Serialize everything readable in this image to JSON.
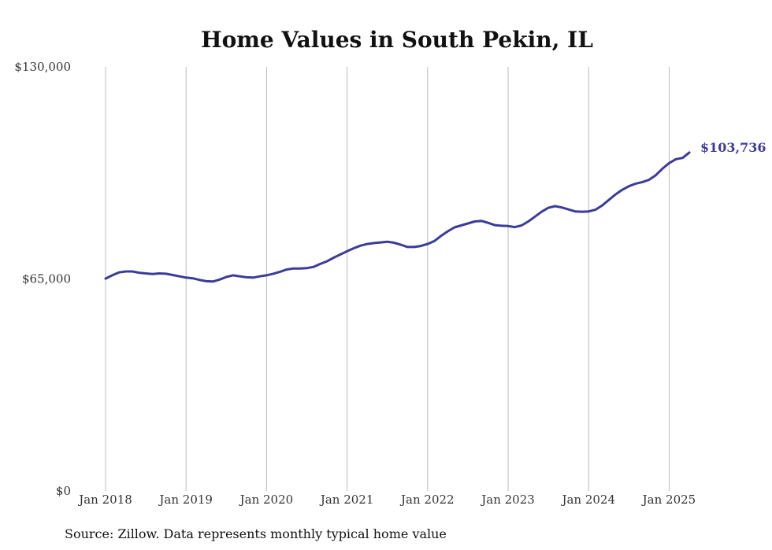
{
  "chart_data": {
    "type": "line",
    "title": "Home Values in South Pekin, IL",
    "xlabel": "",
    "ylabel": "",
    "ylim": [
      0,
      130000
    ],
    "y_ticks": [
      "$0",
      "$65,000",
      "$130,000"
    ],
    "y_tick_values": [
      0,
      65000,
      130000
    ],
    "x_ticks": [
      "Jan 2018",
      "Jan 2019",
      "Jan 2020",
      "Jan 2021",
      "Jan 2022",
      "Jan 2023",
      "Jan 2024",
      "Jan 2025"
    ],
    "x_tick_values": [
      "2018-01",
      "2019-01",
      "2020-01",
      "2021-01",
      "2022-01",
      "2023-01",
      "2024-01",
      "2025-01"
    ],
    "xlim": [
      "2018-01",
      "2025-04"
    ],
    "grid": "vertical",
    "line_color": "#3d3b9a",
    "grid_color": "#bbbbbb",
    "end_label": "$103,736",
    "source": "Source: Zillow. Data represents monthly typical home value",
    "series": [
      {
        "points": [
          [
            "2018-01",
            65100
          ],
          [
            "2018-02",
            66100
          ],
          [
            "2018-03",
            67000
          ],
          [
            "2018-04",
            67300
          ],
          [
            "2018-05",
            67300
          ],
          [
            "2018-06",
            66900
          ],
          [
            "2018-07",
            66700
          ],
          [
            "2018-08",
            66500
          ],
          [
            "2018-09",
            66700
          ],
          [
            "2018-10",
            66600
          ],
          [
            "2018-11",
            66200
          ],
          [
            "2018-12",
            65800
          ],
          [
            "2019-01",
            65400
          ],
          [
            "2019-02",
            65200
          ],
          [
            "2019-03",
            64700
          ],
          [
            "2019-04",
            64300
          ],
          [
            "2019-05",
            64200
          ],
          [
            "2019-06",
            64800
          ],
          [
            "2019-07",
            65600
          ],
          [
            "2019-08",
            66100
          ],
          [
            "2019-09",
            65800
          ],
          [
            "2019-10",
            65500
          ],
          [
            "2019-11",
            65400
          ],
          [
            "2019-12",
            65800
          ],
          [
            "2020-01",
            66100
          ],
          [
            "2020-02",
            66600
          ],
          [
            "2020-03",
            67200
          ],
          [
            "2020-04",
            67900
          ],
          [
            "2020-05",
            68200
          ],
          [
            "2020-06",
            68200
          ],
          [
            "2020-07",
            68300
          ],
          [
            "2020-08",
            68700
          ],
          [
            "2020-09",
            69600
          ],
          [
            "2020-10",
            70400
          ],
          [
            "2020-11",
            71500
          ],
          [
            "2020-12",
            72500
          ],
          [
            "2021-01",
            73500
          ],
          [
            "2021-02",
            74400
          ],
          [
            "2021-03",
            75200
          ],
          [
            "2021-04",
            75700
          ],
          [
            "2021-05",
            76000
          ],
          [
            "2021-06",
            76200
          ],
          [
            "2021-07",
            76400
          ],
          [
            "2021-08",
            76100
          ],
          [
            "2021-09",
            75500
          ],
          [
            "2021-10",
            74800
          ],
          [
            "2021-11",
            74800
          ],
          [
            "2021-12",
            75100
          ],
          [
            "2022-01",
            75700
          ],
          [
            "2022-02",
            76600
          ],
          [
            "2022-03",
            78200
          ],
          [
            "2022-04",
            79600
          ],
          [
            "2022-05",
            80800
          ],
          [
            "2022-06",
            81400
          ],
          [
            "2022-07",
            82000
          ],
          [
            "2022-08",
            82600
          ],
          [
            "2022-09",
            82800
          ],
          [
            "2022-10",
            82200
          ],
          [
            "2022-11",
            81500
          ],
          [
            "2022-12",
            81300
          ],
          [
            "2023-01",
            81200
          ],
          [
            "2023-02",
            80900
          ],
          [
            "2023-03",
            81400
          ],
          [
            "2023-04",
            82600
          ],
          [
            "2023-05",
            84100
          ],
          [
            "2023-06",
            85600
          ],
          [
            "2023-07",
            86800
          ],
          [
            "2023-08",
            87300
          ],
          [
            "2023-09",
            86900
          ],
          [
            "2023-10",
            86300
          ],
          [
            "2023-11",
            85700
          ],
          [
            "2023-12",
            85600
          ],
          [
            "2024-01",
            85700
          ],
          [
            "2024-02",
            86200
          ],
          [
            "2024-03",
            87500
          ],
          [
            "2024-04",
            89200
          ],
          [
            "2024-05",
            90900
          ],
          [
            "2024-06",
            92300
          ],
          [
            "2024-07",
            93400
          ],
          [
            "2024-08",
            94200
          ],
          [
            "2024-09",
            94700
          ],
          [
            "2024-10",
            95400
          ],
          [
            "2024-11",
            96800
          ],
          [
            "2024-12",
            98800
          ],
          [
            "2025-01",
            100500
          ],
          [
            "2025-02",
            101700
          ],
          [
            "2025-03",
            102100
          ],
          [
            "2025-04",
            103736
          ]
        ]
      }
    ]
  }
}
